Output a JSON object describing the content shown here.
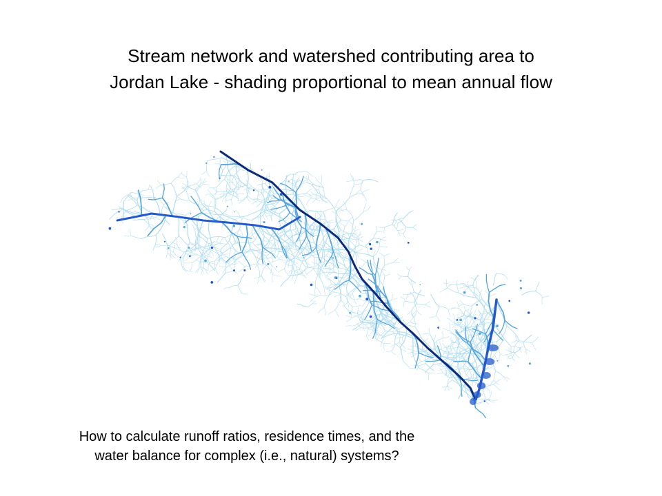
{
  "slide": {
    "title_lines": [
      "Stream network and watershed contributing area to",
      "Jordan Lake - shading proportional to mean annual flow"
    ],
    "question_lines": [
      "How to calculate runoff ratios, residence times, and the",
      "water balance for complex (i.e., natural) systems?"
    ]
  },
  "map": {
    "subject": "stream network watershed",
    "colors": {
      "low_flow": "#b6dff0",
      "mid_flow": "#5aa6db",
      "high_flow": "#2459c9",
      "main_stem": "#0d2a78"
    }
  }
}
